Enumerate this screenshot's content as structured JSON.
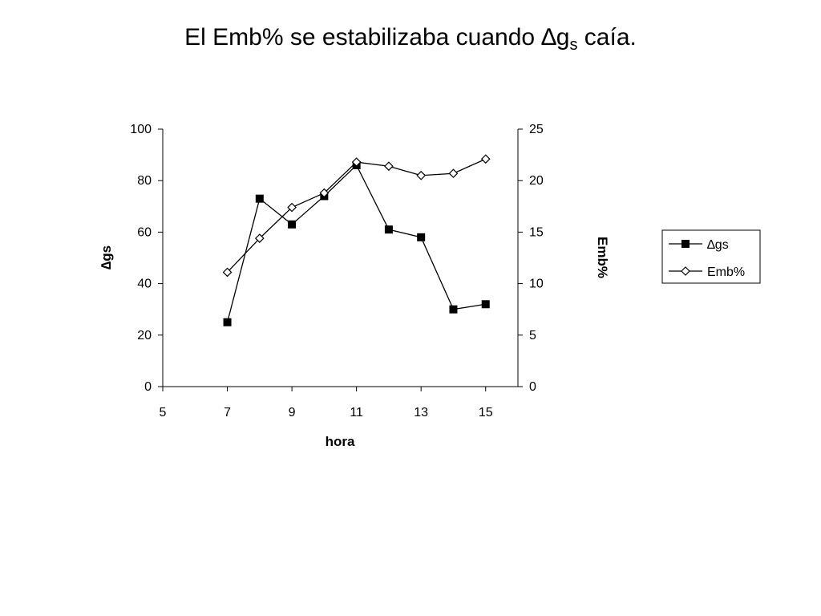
{
  "slide": {
    "title_main": "El Emb% se estabilizaba cuando ",
    "title_delta": "∆g",
    "title_sub": "s",
    "title_tail": " caía."
  },
  "chart_data": {
    "type": "line",
    "xlabel": "hora",
    "ylabel_left": "∆gs",
    "ylabel_right": "Emb%",
    "xlim": [
      5,
      16
    ],
    "x_ticks": [
      5,
      7,
      9,
      11,
      13,
      15
    ],
    "ylim_left": [
      0,
      100
    ],
    "y_ticks_left": [
      0,
      20,
      40,
      60,
      80,
      100
    ],
    "ylim_right": [
      0,
      25
    ],
    "y_ticks_right": [
      0,
      5,
      10,
      15,
      20,
      25
    ],
    "grid": false,
    "legend_position": "right",
    "series": [
      {
        "name": "∆gs",
        "axis": "left",
        "marker": "filled-square",
        "x": [
          7,
          8,
          9,
          10,
          11,
          12,
          13,
          14,
          15
        ],
        "y": [
          25,
          73,
          63,
          74,
          86,
          61,
          58,
          30,
          32
        ]
      },
      {
        "name": "Emb%",
        "axis": "right",
        "marker": "open-diamond",
        "x": [
          7,
          8,
          9,
          10,
          11,
          12,
          13,
          14,
          15
        ],
        "y": [
          11.1,
          14.4,
          17.4,
          18.8,
          21.8,
          21.4,
          20.5,
          20.7,
          22.1
        ]
      }
    ]
  }
}
